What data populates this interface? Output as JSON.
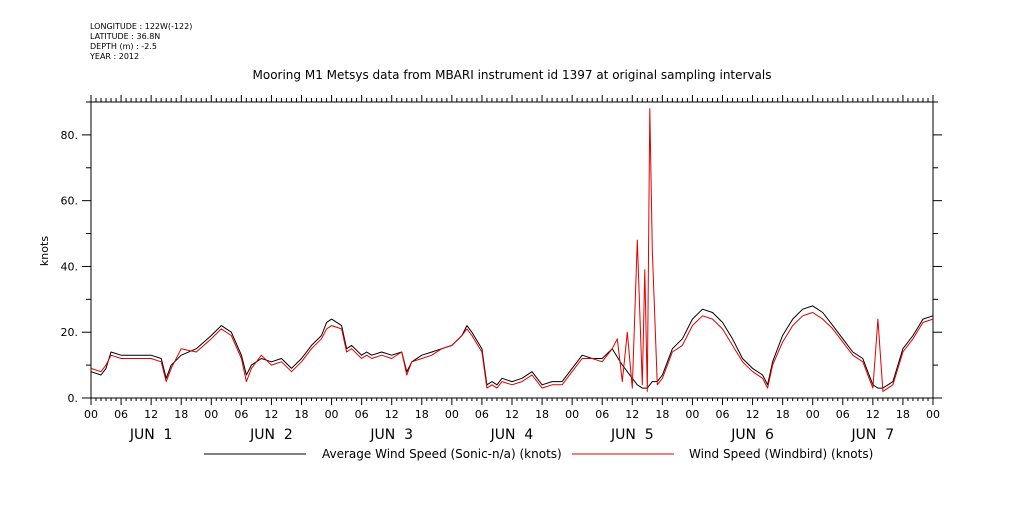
{
  "header": {
    "meta_lines": [
      "LONGITUDE : 122W(-122)",
      "LATITUDE : 36.8N",
      "DEPTH (m) : -2.5",
      "YEAR : 2012"
    ],
    "title": "Mooring M1 Metsys data from MBARI instrument id 1397 at original sampling intervals"
  },
  "colors": {
    "average_wind": "#000000",
    "windbird": "#e00000",
    "axes": "#000000"
  },
  "chart_data": {
    "type": "line",
    "title": "Mooring M1 Metsys data from MBARI instrument id 1397 at original sampling intervals",
    "ylabel": "knots",
    "xlabel": "",
    "ylim": [
      0,
      90
    ],
    "yticks": [
      0,
      20,
      40,
      60,
      80
    ],
    "ytick_labels": [
      "0.",
      "20.",
      "40.",
      "60.",
      "80."
    ],
    "xlim_hours": [
      0,
      168
    ],
    "xtick_hours": [
      0,
      6,
      12,
      18,
      24,
      30,
      36,
      42,
      48,
      54,
      60,
      66,
      72,
      78,
      84,
      90,
      96,
      102,
      108,
      114,
      120,
      126,
      132,
      138,
      144,
      150,
      156,
      162,
      168
    ],
    "xtick_labels": [
      "00",
      "06",
      "12",
      "18",
      "00",
      "06",
      "12",
      "18",
      "00",
      "06",
      "12",
      "18",
      "00",
      "06",
      "12",
      "18",
      "00",
      "06",
      "12",
      "18",
      "00",
      "06",
      "12",
      "18",
      "00",
      "06",
      "12",
      "18",
      "00"
    ],
    "day_labels": [
      {
        "text": "JUN  1",
        "hour": 12
      },
      {
        "text": "JUN  2",
        "hour": 36
      },
      {
        "text": "JUN  3",
        "hour": 60
      },
      {
        "text": "JUN  4",
        "hour": 84
      },
      {
        "text": "JUN  5",
        "hour": 108
      },
      {
        "text": "JUN  6",
        "hour": 132
      },
      {
        "text": "JUN  7",
        "hour": 156
      }
    ],
    "grid": false,
    "legend_placement": "bottom",
    "series": [
      {
        "name": "Average Wind Speed (Sonic-n/a) (knots)",
        "color": "#000000",
        "x": [
          0,
          2,
          3,
          4,
          6,
          9,
          12,
          14,
          15,
          16,
          18,
          21,
          24,
          26,
          28,
          30,
          31,
          32,
          34,
          36,
          38,
          40,
          42,
          44,
          46,
          47,
          48,
          50,
          51,
          52,
          54,
          55,
          56,
          58,
          60,
          62,
          63,
          64,
          66,
          68,
          70,
          72,
          74,
          75,
          76,
          78,
          79,
          80,
          81,
          82,
          84,
          86,
          88,
          90,
          92,
          94,
          96,
          98,
          100,
          102,
          104,
          106,
          108,
          109,
          110,
          111,
          112,
          113,
          114,
          116,
          118,
          120,
          122,
          124,
          126,
          128,
          130,
          132,
          134,
          135,
          136,
          138,
          140,
          142,
          144,
          146,
          148,
          150,
          152,
          154,
          155,
          156,
          157,
          158,
          160,
          162,
          164,
          166,
          168
        ],
        "y": [
          8,
          7,
          9,
          14,
          13,
          13,
          13,
          12,
          6,
          10,
          13,
          15,
          19,
          22,
          20,
          13,
          7,
          10,
          12,
          11,
          12,
          9,
          12,
          16,
          19,
          23,
          24,
          22,
          15,
          16,
          13,
          14,
          13,
          14,
          13,
          14,
          8,
          11,
          13,
          14,
          15,
          16,
          19,
          22,
          20,
          15,
          4,
          5,
          4,
          6,
          5,
          6,
          8,
          4,
          5,
          5,
          9,
          13,
          12,
          12,
          15,
          10,
          6,
          4,
          3,
          3,
          5,
          5,
          7,
          15,
          18,
          24,
          27,
          26,
          23,
          18,
          12,
          9,
          7,
          4,
          11,
          19,
          24,
          27,
          28,
          26,
          22,
          18,
          14,
          12,
          8,
          4,
          3,
          3,
          5,
          15,
          19,
          24,
          25
        ]
      },
      {
        "name": "Wind Speed (Windbird) (knots)",
        "color": "#e00000",
        "x": [
          0,
          2,
          3,
          4,
          6,
          9,
          12,
          14,
          15,
          16,
          18,
          21,
          24,
          26,
          28,
          30,
          31,
          32,
          34,
          36,
          38,
          40,
          42,
          44,
          46,
          47,
          48,
          50,
          51,
          52,
          54,
          55,
          56,
          58,
          60,
          62,
          63,
          64,
          66,
          68,
          70,
          72,
          74,
          75,
          76,
          78,
          79,
          80,
          81,
          82,
          84,
          86,
          88,
          90,
          92,
          94,
          96,
          98,
          100,
          102,
          104,
          105,
          106,
          107,
          108,
          109,
          110,
          110.5,
          111,
          111.5,
          112,
          113,
          114,
          116,
          118,
          120,
          122,
          124,
          126,
          128,
          130,
          132,
          134,
          135,
          136,
          138,
          140,
          142,
          144,
          146,
          148,
          150,
          152,
          154,
          155,
          156,
          157,
          158,
          160,
          162,
          164,
          166,
          168
        ],
        "y": [
          9,
          8,
          10,
          13,
          12,
          12,
          12,
          11,
          5,
          9,
          15,
          14,
          18,
          21,
          19,
          12,
          5,
          9,
          13,
          10,
          11,
          8,
          11,
          15,
          18,
          21,
          22,
          21,
          14,
          15,
          12,
          13,
          12,
          13,
          12,
          14,
          7,
          11,
          12,
          13,
          15,
          16,
          19,
          21,
          19,
          14,
          3,
          4,
          3,
          5,
          4,
          5,
          7,
          3,
          4,
          4,
          8,
          12,
          12,
          11,
          15,
          18,
          5,
          20,
          3,
          48,
          4,
          39,
          2,
          88,
          45,
          4,
          6,
          14,
          16,
          22,
          25,
          24,
          21,
          16,
          11,
          8,
          6,
          3,
          10,
          17,
          22,
          25,
          26,
          24,
          21,
          17,
          13,
          11,
          7,
          3,
          24,
          2,
          4,
          14,
          18,
          23,
          24
        ]
      }
    ]
  }
}
